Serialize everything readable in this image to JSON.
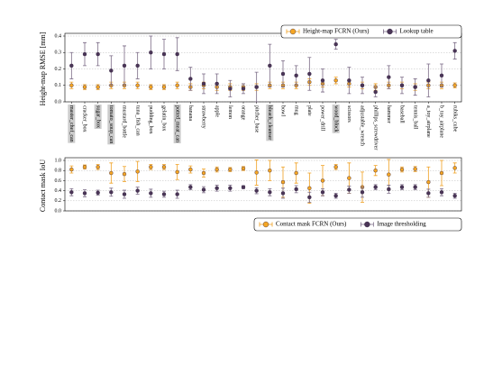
{
  "chart_data": [
    {
      "type": "errorbar",
      "ylabel": "Height-map RMSE [mm]",
      "categories": [
        "master_chef_can",
        "cracker_box",
        "sugar_box",
        "tomato_soup_can",
        "mustard_bottle",
        "tuna_fish_can",
        "pudding_box",
        "gelatin_box",
        "potted_meat_can",
        "banana",
        "strawberry",
        "apple",
        "lemon",
        "orange",
        "pitcher_base",
        "bleach_cleanser",
        "bowl",
        "mug",
        "plate",
        "power_drill",
        "wood_block",
        "scissors",
        "adjustable_wrench",
        "phillips_screwdriver",
        "hammer",
        "baseball",
        "tennis_ball",
        "a_toy_airplane",
        "b_toy_airplane",
        "rubiks_cube"
      ],
      "highlighted": [
        true,
        false,
        true,
        true,
        false,
        false,
        false,
        false,
        true,
        false,
        false,
        false,
        false,
        false,
        false,
        true,
        false,
        false,
        false,
        false,
        true,
        false,
        false,
        false,
        false,
        false,
        false,
        false,
        false,
        false
      ],
      "ylim": [
        0,
        0.4
      ],
      "yticks": [
        {
          "value": 0,
          "label": "0.0"
        },
        {
          "value": 0.1,
          "label": "0.1"
        },
        {
          "value": 0.2,
          "label": "0.2"
        },
        {
          "value": 0.3,
          "label": "0.3"
        },
        {
          "value": 0.4,
          "label": "0.4"
        }
      ],
      "grid": true,
      "legend": "upper right",
      "series": [
        {
          "name": "Height-map FCRN (Ours)",
          "color": "#f0a020",
          "marker_color": "#f5a623",
          "values": [
            0.1,
            0.09,
            0.09,
            0.1,
            0.1,
            0.1,
            0.09,
            0.09,
            0.1,
            0.09,
            0.1,
            0.09,
            0.09,
            0.09,
            0.09,
            0.1,
            0.1,
            0.1,
            0.12,
            0.11,
            0.13,
            0.11,
            0.1,
            0.09,
            0.1,
            0.1,
            0.09,
            0.1,
            0.1,
            0.1
          ],
          "errors": [
            0.02,
            0.015,
            0.015,
            0.02,
            0.02,
            0.02,
            0.015,
            0.015,
            0.02,
            0.02,
            0.02,
            0.02,
            0.02,
            0.02,
            0.02,
            0.02,
            0.02,
            0.02,
            0.02,
            0.02,
            0.02,
            0.02,
            0.02,
            0.02,
            0.02,
            0.02,
            0.02,
            0.02,
            0.02,
            0.015
          ]
        },
        {
          "name": "Lookup table",
          "color": "#7a6a85",
          "marker_color": "#4a3557",
          "values": [
            0.22,
            0.29,
            0.29,
            0.19,
            0.22,
            0.22,
            0.3,
            0.29,
            0.29,
            0.14,
            0.11,
            0.11,
            0.08,
            0.08,
            0.09,
            0.22,
            0.17,
            0.16,
            0.17,
            0.13,
            0.35,
            0.13,
            0.1,
            0.06,
            0.15,
            0.1,
            0.09,
            0.13,
            0.16,
            0.31
          ],
          "errors": [
            0.08,
            0.07,
            0.07,
            0.09,
            0.12,
            0.08,
            0.1,
            0.09,
            0.1,
            0.07,
            0.06,
            0.06,
            0.05,
            0.03,
            0.09,
            0.13,
            0.08,
            0.06,
            0.1,
            0.07,
            0.03,
            0.08,
            0.05,
            0.03,
            0.07,
            0.05,
            0.05,
            0.1,
            0.07,
            0.05
          ]
        }
      ]
    },
    {
      "type": "errorbar",
      "ylabel": "Contact mask IoU",
      "ylim": [
        0,
        1
      ],
      "yticks": [
        {
          "value": 0,
          "label": "0.0"
        },
        {
          "value": 0.2,
          "label": "0.2"
        },
        {
          "value": 0.4,
          "label": "0.4"
        },
        {
          "value": 0.6,
          "label": "0.6"
        },
        {
          "value": 0.8,
          "label": "0.8"
        },
        {
          "value": 1,
          "label": "1.0"
        }
      ],
      "grid": true,
      "legend": "lower right",
      "series": [
        {
          "name": "Contact mask FCRN (Ours)",
          "color": "#f0a020",
          "marker_color": "#f5a623",
          "values": [
            0.82,
            0.87,
            0.87,
            0.75,
            0.73,
            0.78,
            0.87,
            0.87,
            0.77,
            0.82,
            0.75,
            0.82,
            0.82,
            0.84,
            0.76,
            0.8,
            0.57,
            0.75,
            0.45,
            0.6,
            0.87,
            0.65,
            0.47,
            0.8,
            0.72,
            0.82,
            0.83,
            0.57,
            0.75,
            0.85
          ],
          "errors": [
            0.07,
            0.04,
            0.05,
            0.2,
            0.15,
            0.2,
            0.05,
            0.05,
            0.15,
            0.07,
            0.08,
            0.05,
            0.04,
            0.04,
            0.25,
            0.2,
            0.3,
            0.2,
            0.3,
            0.3,
            0.05,
            0.3,
            0.3,
            0.1,
            0.3,
            0.05,
            0.05,
            0.3,
            0.25,
            0.1
          ]
        },
        {
          "name": "Image thresholding",
          "color": "#7a6a85",
          "marker_color": "#4a3557",
          "values": [
            0.37,
            0.35,
            0.36,
            0.37,
            0.33,
            0.4,
            0.35,
            0.33,
            0.33,
            0.47,
            0.42,
            0.45,
            0.45,
            0.47,
            0.4,
            0.37,
            0.35,
            0.43,
            0.27,
            0.37,
            0.3,
            0.42,
            0.37,
            0.47,
            0.43,
            0.47,
            0.47,
            0.35,
            0.37,
            0.3
          ],
          "errors": [
            0.07,
            0.07,
            0.05,
            0.08,
            0.08,
            0.07,
            0.08,
            0.06,
            0.08,
            0.05,
            0.06,
            0.06,
            0.06,
            0.03,
            0.06,
            0.07,
            0.1,
            0.07,
            0.1,
            0.07,
            0.05,
            0.07,
            0.1,
            0.05,
            0.08,
            0.05,
            0.05,
            0.08,
            0.07,
            0.05
          ]
        }
      ]
    }
  ]
}
